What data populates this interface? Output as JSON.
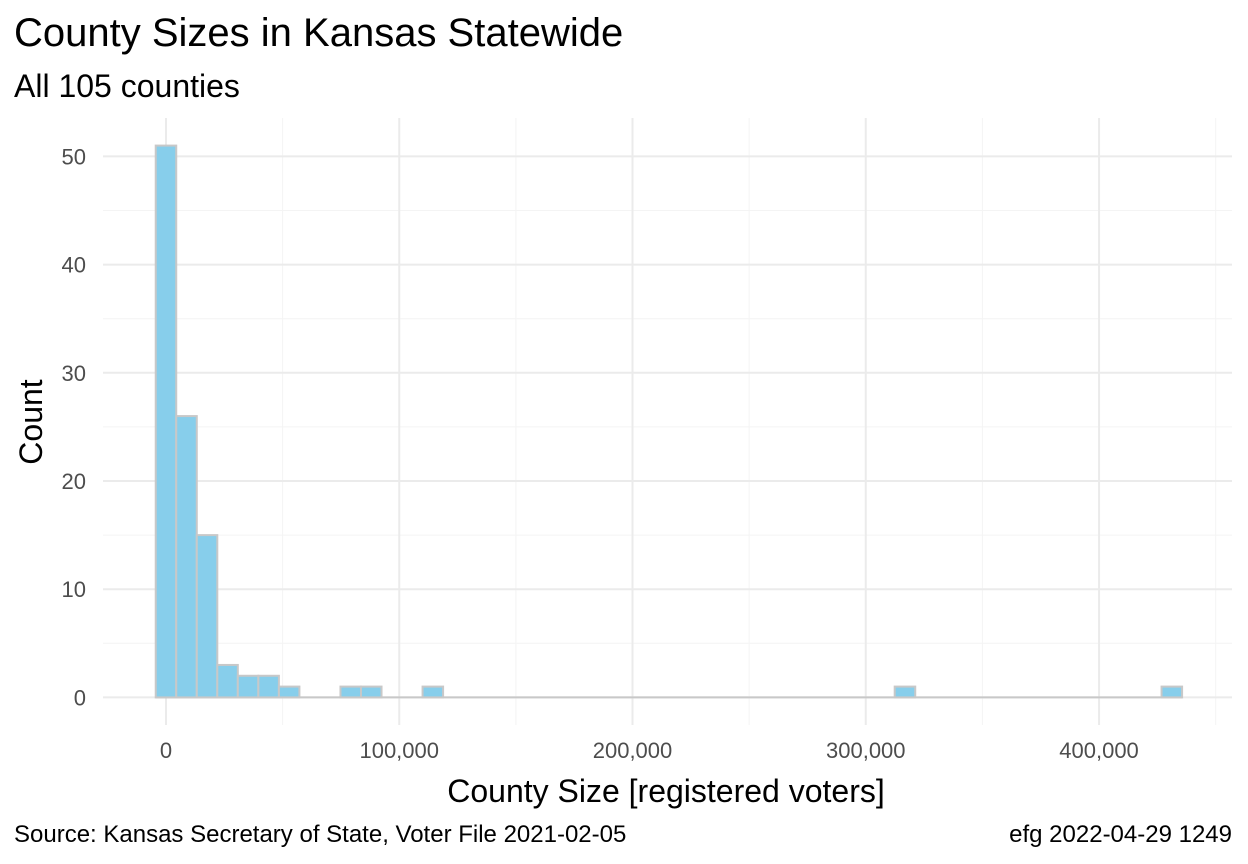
{
  "chart_data": {
    "type": "bar",
    "title": "County Sizes in Kansas Statewide",
    "subtitle": "All 105 counties",
    "xlabel": "County Size [registered voters]",
    "ylabel": "Count",
    "caption_left": "Source:  Kansas Secretary of State, Voter File  2021-02-05",
    "caption_right": "efg 2022-04-29 1249",
    "binwidth": 8800,
    "bins": [
      {
        "x": 0,
        "count": 51
      },
      {
        "x": 8800,
        "count": 26
      },
      {
        "x": 17600,
        "count": 15
      },
      {
        "x": 26400,
        "count": 3
      },
      {
        "x": 35200,
        "count": 2
      },
      {
        "x": 44000,
        "count": 2
      },
      {
        "x": 52800,
        "count": 1
      },
      {
        "x": 79200,
        "count": 1
      },
      {
        "x": 88000,
        "count": 1
      },
      {
        "x": 114400,
        "count": 1
      },
      {
        "x": 316800,
        "count": 1
      },
      {
        "x": 431200,
        "count": 1
      }
    ],
    "xlim": [
      -27000,
      457000
    ],
    "ylim": [
      -2.55,
      53.55
    ],
    "x_ticks": [
      0,
      100000,
      200000,
      300000,
      400000
    ],
    "x_tick_labels": [
      "0",
      "100,000",
      "200,000",
      "300,000",
      "400,000"
    ],
    "y_ticks": [
      0,
      10,
      20,
      30,
      40,
      50
    ],
    "y_tick_labels": [
      "0",
      "10",
      "20",
      "30",
      "40",
      "50"
    ],
    "grid": true,
    "colors": {
      "bar_fill": "#87ceeb",
      "bar_stroke": "#c8c8c8",
      "grid_major": "#ebebeb",
      "grid_minor": "#f4f4f4",
      "tick_text": "#4d4d4d"
    }
  }
}
